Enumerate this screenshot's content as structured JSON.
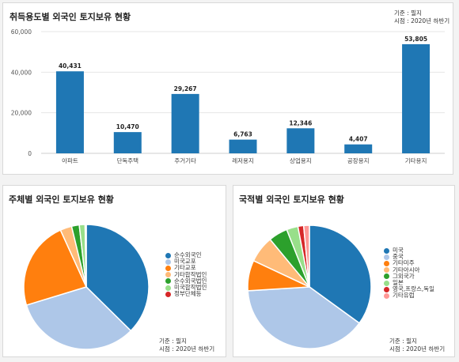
{
  "panels": {
    "top": {
      "title": "취득용도별 외국인 토지보유 현황",
      "basis": "기준 : 필지",
      "period": "시점 : 2020년 하반기"
    },
    "left": {
      "title": "주체별 외국인 토지보유 현황",
      "basis": "기준 : 필지",
      "period": "시점 : 2020년 하반기"
    },
    "right": {
      "title": "국적별 외국인 토지보유 현황",
      "basis": "기준 : 필지",
      "period": "시점 : 2020년 하반기"
    }
  },
  "chart_data": [
    {
      "type": "bar",
      "title": "취득용도별 외국인 토지보유 현황",
      "categories": [
        "아파트",
        "단독주택",
        "주거기타",
        "레저용지",
        "상업용지",
        "공장용지",
        "기타용지"
      ],
      "values": [
        40431,
        10470,
        29267,
        6763,
        12346,
        4407,
        53805
      ],
      "value_labels": [
        "40,431",
        "10,470",
        "29,267",
        "6,763",
        "12,346",
        "4,407",
        "53,805"
      ],
      "ylim": [
        0,
        60000
      ],
      "yticks": [
        0,
        20000,
        40000,
        60000
      ],
      "ytick_labels": [
        "0",
        "20,000",
        "40,000",
        "60,000"
      ],
      "grid": true,
      "color": "#1f77b4"
    },
    {
      "type": "pie",
      "title": "주체별 외국인 토지보유 현황",
      "labels": [
        "순수외국인",
        "미국교포",
        "기타교포",
        "기타합작법인",
        "순수외국법인",
        "미국합작법인",
        "정부단체등"
      ],
      "values": [
        37.5,
        33.0,
        23.0,
        3.0,
        2.0,
        1.5,
        0.3
      ],
      "colors": [
        "#1f77b4",
        "#aec7e8",
        "#ff7f0e",
        "#ffbb78",
        "#2ca02c",
        "#98df8a",
        "#d62728"
      ],
      "legend": "right"
    },
    {
      "type": "pie",
      "title": "국적별 외국인 토지보유 현황",
      "labels": [
        "미국",
        "중국",
        "기타미주",
        "기타아시아",
        "그외국가",
        "일본",
        "영국,프랑스,독일",
        "기타유럽"
      ],
      "values": [
        35.0,
        39.0,
        8.0,
        7.0,
        5.0,
        3.0,
        1.5,
        1.5
      ],
      "colors": [
        "#1f77b4",
        "#aec7e8",
        "#ff7f0e",
        "#ffbb78",
        "#2ca02c",
        "#98df8a",
        "#d62728",
        "#ff9896"
      ],
      "legend": "right"
    }
  ]
}
